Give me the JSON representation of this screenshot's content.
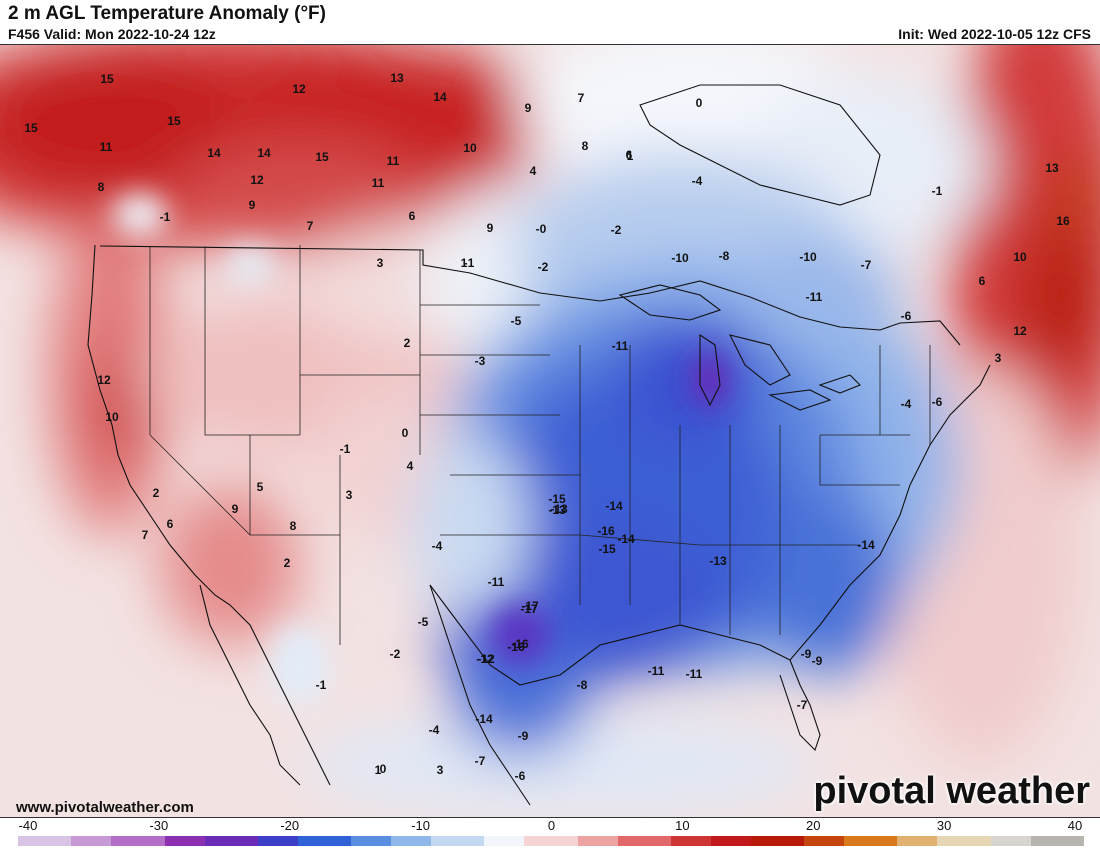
{
  "header": {
    "title": "2 m AGL Temperature Anomaly (°F)",
    "valid": "F456 Valid: Mon 2022-10-24 12z",
    "init": "Init: Wed 2022-10-05 12z CFS"
  },
  "footer": {
    "website": "www.pivotalweather.com",
    "brand": "pivotal weather"
  },
  "colorbar": {
    "ticks": [
      "-40",
      "-30",
      "-20",
      "-10",
      "0",
      "10",
      "20",
      "30",
      "40"
    ],
    "min": -40,
    "max": 40,
    "stops": [
      "#d9c4e6",
      "#c79ad6",
      "#b36fc7",
      "#8c2fb0",
      "#6a2bb6",
      "#3d3fc7",
      "#2f62d6",
      "#5a8ee0",
      "#8fb7ea",
      "#c4d8f2",
      "#f2f5fb",
      "#f6d4d4",
      "#eea3a3",
      "#e06868",
      "#cf3434",
      "#c21a1a",
      "#b81a0a",
      "#c4460c",
      "#d87a1c",
      "#e2b070",
      "#e6d6b4",
      "#d8d4ce",
      "#b8b4ae"
    ]
  },
  "map_labels": [
    {
      "v": "15"
    },
    {
      "v": "12"
    },
    {
      "v": "13"
    },
    {
      "v": "14"
    },
    {
      "v": "7"
    },
    {
      "v": "9"
    },
    {
      "v": "15"
    },
    {
      "v": "15"
    },
    {
      "v": "11"
    },
    {
      "v": "14"
    },
    {
      "v": "14"
    },
    {
      "v": "15"
    },
    {
      "v": "11"
    },
    {
      "v": "8"
    },
    {
      "v": "12"
    },
    {
      "v": "11"
    },
    {
      "v": "9"
    },
    {
      "v": "6"
    },
    {
      "v": "7"
    },
    {
      "v": "-1"
    },
    {
      "v": "10"
    },
    {
      "v": "8"
    },
    {
      "v": "9"
    },
    {
      "v": "6"
    },
    {
      "v": "4"
    },
    {
      "v": "0"
    },
    {
      "v": "1"
    },
    {
      "v": "-4"
    },
    {
      "v": "-2"
    },
    {
      "v": "-0"
    },
    {
      "v": "3"
    },
    {
      "v": "-1"
    },
    {
      "v": "-2"
    },
    {
      "v": "-10"
    },
    {
      "v": "-8"
    },
    {
      "v": "-10"
    },
    {
      "v": "-7"
    },
    {
      "v": "-6"
    },
    {
      "v": "-11"
    },
    {
      "v": "-11"
    },
    {
      "v": "-15"
    },
    {
      "v": "-14"
    },
    {
      "v": "-13"
    },
    {
      "v": "-17"
    },
    {
      "v": "-16"
    },
    {
      "v": "-12"
    },
    {
      "v": "-11"
    },
    {
      "v": "-16"
    },
    {
      "v": "-14"
    },
    {
      "v": "-15"
    },
    {
      "v": "-13"
    },
    {
      "v": "-11"
    },
    {
      "v": "-9"
    },
    {
      "v": "-14"
    },
    {
      "v": "-5"
    },
    {
      "v": "-2"
    },
    {
      "v": "3"
    },
    {
      "v": "2"
    },
    {
      "v": "1"
    },
    {
      "v": "0"
    },
    {
      "v": "4"
    },
    {
      "v": "-1"
    },
    {
      "v": "5"
    },
    {
      "v": "8"
    },
    {
      "v": "9"
    },
    {
      "v": "2"
    },
    {
      "v": "6"
    },
    {
      "v": "7"
    },
    {
      "v": "10"
    },
    {
      "v": "12"
    },
    {
      "v": "-5"
    },
    {
      "v": "-3"
    },
    {
      "v": "-4"
    },
    {
      "v": "-12"
    },
    {
      "v": "-17"
    },
    {
      "v": "-16"
    },
    {
      "v": "-13"
    },
    {
      "v": "-11"
    },
    {
      "v": "-8"
    },
    {
      "v": "-7"
    },
    {
      "v": "-9"
    },
    {
      "v": "-6"
    },
    {
      "v": "-1"
    },
    {
      "v": "13"
    },
    {
      "v": "16"
    },
    {
      "v": "10"
    },
    {
      "v": "12"
    },
    {
      "v": "3"
    },
    {
      "v": "6"
    },
    {
      "v": "-4"
    },
    {
      "v": "2"
    },
    {
      "v": "-1"
    },
    {
      "v": "1"
    },
    {
      "v": "-4"
    },
    {
      "v": "-14"
    },
    {
      "v": "-9"
    },
    {
      "v": "-7"
    },
    {
      "v": "-6"
    },
    {
      "v": "0"
    },
    {
      "v": "3"
    }
  ]
}
